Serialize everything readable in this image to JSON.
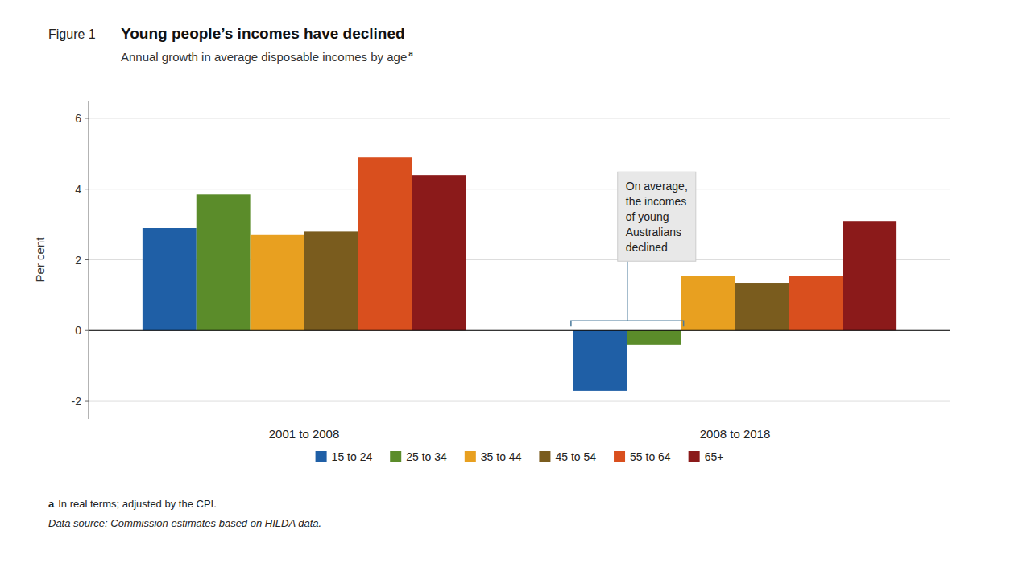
{
  "chart_data": {
    "type": "bar",
    "figure_label": "Figure 1",
    "title": "Young people’s incomes have declined",
    "subtitle": "Annual growth in average disposable incomes by age",
    "subtitle_note": "a",
    "y_label": "Per cent",
    "categories": [
      "2001 to 2008",
      "2008 to 2018"
    ],
    "series": [
      {
        "name": "15 to 24",
        "color": "#1f5fa6",
        "values": [
          2.9,
          -1.7
        ]
      },
      {
        "name": "25 to 34",
        "color": "#5b8c2a",
        "values": [
          3.85,
          -0.4
        ]
      },
      {
        "name": "35 to 44",
        "color": "#e8a020",
        "values": [
          2.7,
          1.55
        ]
      },
      {
        "name": "45 to 54",
        "color": "#7a5c1e",
        "values": [
          2.8,
          1.35
        ]
      },
      {
        "name": "55 to 64",
        "color": "#d94f1e",
        "values": [
          4.9,
          1.55
        ]
      },
      {
        "name": "65+",
        "color": "#8b1a1a",
        "values": [
          4.4,
          3.1
        ]
      }
    ],
    "ylim": [
      -2.5,
      6.5
    ],
    "yticks": [
      -2,
      0,
      2,
      4,
      6
    ],
    "grid": true,
    "legend": "bottom",
    "annotations": [
      {
        "text": "On average,\nthe incomes\nof young\nAustralians\ndeclined"
      }
    ],
    "notes": [
      {
        "marker": "a",
        "text": "In real terms; adjusted by the CPI."
      }
    ],
    "source": "Data source: Commission estimates based on HILDA data."
  }
}
